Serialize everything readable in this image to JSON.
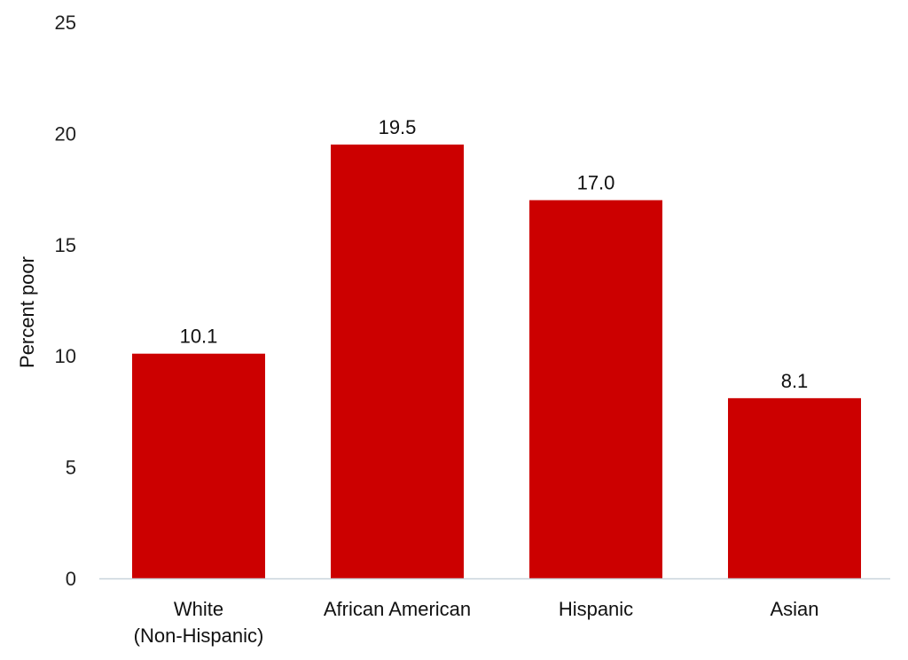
{
  "chart_data": {
    "type": "bar",
    "title": "",
    "xlabel": "",
    "ylabel": "Percent poor",
    "categories": [
      [
        "White",
        "(Non-Hispanic)"
      ],
      [
        "African American"
      ],
      [
        "Hispanic"
      ],
      [
        "Asian"
      ]
    ],
    "values": [
      10.1,
      19.5,
      17.0,
      8.1
    ],
    "value_labels": [
      "10.1",
      "19.5",
      "17.0",
      "8.1"
    ],
    "ylim": [
      0,
      25
    ],
    "yticks": [
      0,
      5,
      10,
      15,
      20,
      25
    ],
    "grid": false,
    "legend": "none",
    "bar_color": "#cc0000",
    "axis_color": "#c8d4dc"
  }
}
